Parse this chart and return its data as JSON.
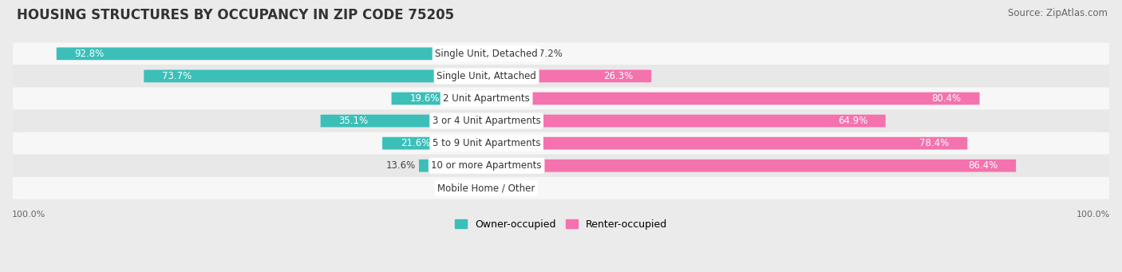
{
  "title": "HOUSING STRUCTURES BY OCCUPANCY IN ZIP CODE 75205",
  "source": "Source: ZipAtlas.com",
  "categories": [
    "Single Unit, Detached",
    "Single Unit, Attached",
    "2 Unit Apartments",
    "3 or 4 Unit Apartments",
    "5 to 9 Unit Apartments",
    "10 or more Apartments",
    "Mobile Home / Other"
  ],
  "owner_pct": [
    92.8,
    73.7,
    19.6,
    35.1,
    21.6,
    13.6,
    0.0
  ],
  "renter_pct": [
    7.2,
    26.3,
    80.4,
    64.9,
    78.4,
    86.4,
    0.0
  ],
  "owner_color": "#3BBFB8",
  "renter_color": "#F472AD",
  "bg_color": "#EBEBEB",
  "row_bg_even": "#F7F7F7",
  "row_bg_odd": "#E8E8E8",
  "label_color": "#444444",
  "title_fontsize": 12,
  "source_fontsize": 8.5,
  "bar_label_fontsize": 8.5,
  "category_fontsize": 8.5,
  "legend_fontsize": 9,
  "tick_fontsize": 8,
  "bar_height": 0.55
}
